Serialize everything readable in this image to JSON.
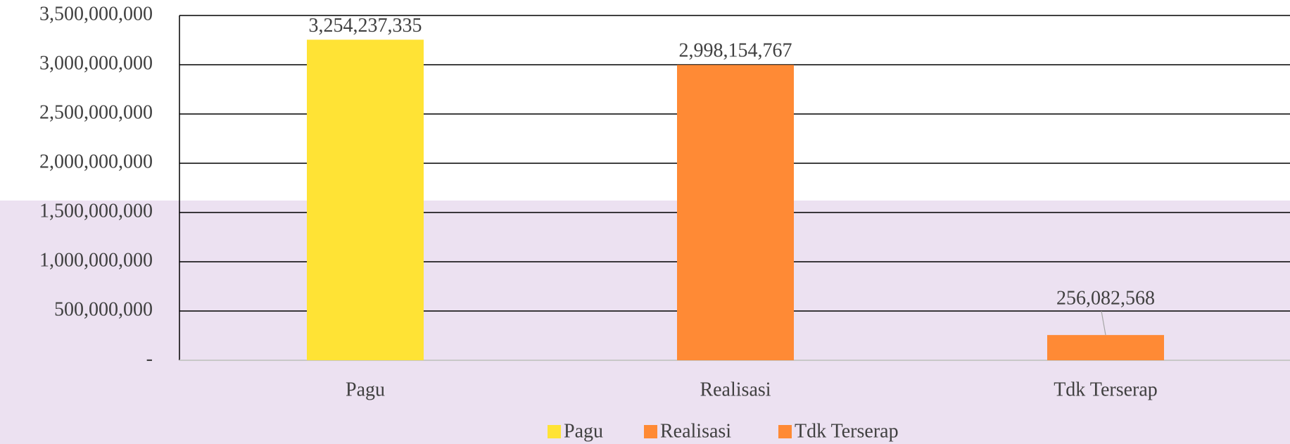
{
  "chart_data": {
    "type": "bar",
    "categories": [
      "Pagu",
      "Realisasi",
      "Tdk Terserap"
    ],
    "values": [
      3254237335,
      2998154767,
      256082568
    ],
    "value_labels": [
      "3,254,237,335",
      "2,998,154,767",
      "256,082,568"
    ],
    "colors": [
      "#ffe335",
      "#ff8a35",
      "#ff8a35"
    ],
    "ylim": [
      0,
      3500000000
    ],
    "yticks": [
      {
        "value": 0,
        "label": "-"
      },
      {
        "value": 500000000,
        "label": "500,000,000"
      },
      {
        "value": 1000000000,
        "label": "1,000,000,000"
      },
      {
        "value": 1500000000,
        "label": "1,500,000,000"
      },
      {
        "value": 2000000000,
        "label": "2,000,000,000"
      },
      {
        "value": 2500000000,
        "label": "2,500,000,000"
      },
      {
        "value": 3000000000,
        "label": "3,000,000,000"
      },
      {
        "value": 3500000000,
        "label": "3,500,000,000"
      }
    ],
    "grid": true,
    "legend": "bottom"
  }
}
